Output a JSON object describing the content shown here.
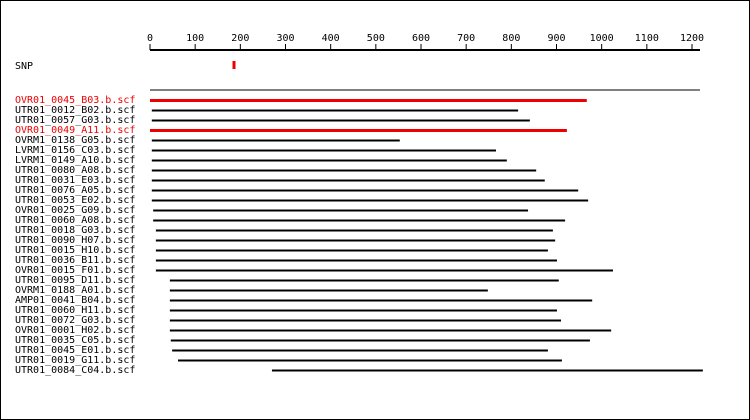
{
  "chart_data": {
    "type": "range",
    "xlim": [
      0,
      1225
    ],
    "xticks": [
      0,
      100,
      200,
      300,
      400,
      500,
      600,
      700,
      800,
      900,
      1000,
      1100,
      1200
    ],
    "snp": {
      "label": "SNP",
      "position": 186,
      "color": "#ee0000"
    },
    "reads": [
      {
        "name": "OVR01_0045_B03.b.scf",
        "color": "#ee0000",
        "start": 0,
        "end": 967
      },
      {
        "name": "UTR01_0012_B02.b.scf",
        "color": "#000000",
        "start": 4,
        "end": 815
      },
      {
        "name": "UTR01_0057_G03.b.scf",
        "color": "#000000",
        "start": 4,
        "end": 841
      },
      {
        "name": "OVR01_0049_A11.b.scf",
        "color": "#ee0000",
        "start": 0,
        "end": 923
      },
      {
        "name": "OVRM1_0138_G05.b.scf",
        "color": "#000000",
        "start": 4,
        "end": 553
      },
      {
        "name": "LVRM1_0156_C03.b.scf",
        "color": "#000000",
        "start": 4,
        "end": 766
      },
      {
        "name": "LVRM1_0149_A10.b.scf",
        "color": "#000000",
        "start": 4,
        "end": 790
      },
      {
        "name": "UTR01_0080_A08.b.scf",
        "color": "#000000",
        "start": 4,
        "end": 855
      },
      {
        "name": "UTR01_0031_E03.b.scf",
        "color": "#000000",
        "start": 4,
        "end": 874
      },
      {
        "name": "UTR01_0076_A05.b.scf",
        "color": "#000000",
        "start": 4,
        "end": 948
      },
      {
        "name": "UTR01_0053_E02.b.scf",
        "color": "#000000",
        "start": 4,
        "end": 970
      },
      {
        "name": "OVR01_0025_G09.b.scf",
        "color": "#000000",
        "start": 7,
        "end": 837
      },
      {
        "name": "UTR01_0060_A08.b.scf",
        "color": "#000000",
        "start": 7,
        "end": 919
      },
      {
        "name": "UTR01_0018_G03.b.scf",
        "color": "#000000",
        "start": 13,
        "end": 892
      },
      {
        "name": "UTR01_0090_H07.b.scf",
        "color": "#000000",
        "start": 13,
        "end": 897
      },
      {
        "name": "UTR01_0015_H10.b.scf",
        "color": "#000000",
        "start": 13,
        "end": 881
      },
      {
        "name": "UTR01_0036_B11.b.scf",
        "color": "#000000",
        "start": 13,
        "end": 901
      },
      {
        "name": "OVR01_0015_F01.b.scf",
        "color": "#000000",
        "start": 13,
        "end": 1025
      },
      {
        "name": "UTR01_0095_D11.b.scf",
        "color": "#000000",
        "start": 44,
        "end": 905
      },
      {
        "name": "OVRM1_0188_A01.b.scf",
        "color": "#000000",
        "start": 44,
        "end": 748
      },
      {
        "name": "AMP01_0041_B04.b.scf",
        "color": "#000000",
        "start": 44,
        "end": 979
      },
      {
        "name": "UTR01_0060_H11.b.scf",
        "color": "#000000",
        "start": 44,
        "end": 901
      },
      {
        "name": "UTR01_0072_G03.b.scf",
        "color": "#000000",
        "start": 44,
        "end": 910
      },
      {
        "name": "OVR01_0001_H02.b.scf",
        "color": "#000000",
        "start": 44,
        "end": 1021
      },
      {
        "name": "UTR01_0035_C05.b.scf",
        "color": "#000000",
        "start": 46,
        "end": 974
      },
      {
        "name": "UTR01_0045_E01.b.scf",
        "color": "#000000",
        "start": 49,
        "end": 881
      },
      {
        "name": "UTR01_0019_G11.b.scf",
        "color": "#000000",
        "start": 62,
        "end": 912
      },
      {
        "name": "UTR01_0084_C04.b.scf",
        "color": "#000000",
        "start": 270,
        "end": 1224
      }
    ]
  }
}
